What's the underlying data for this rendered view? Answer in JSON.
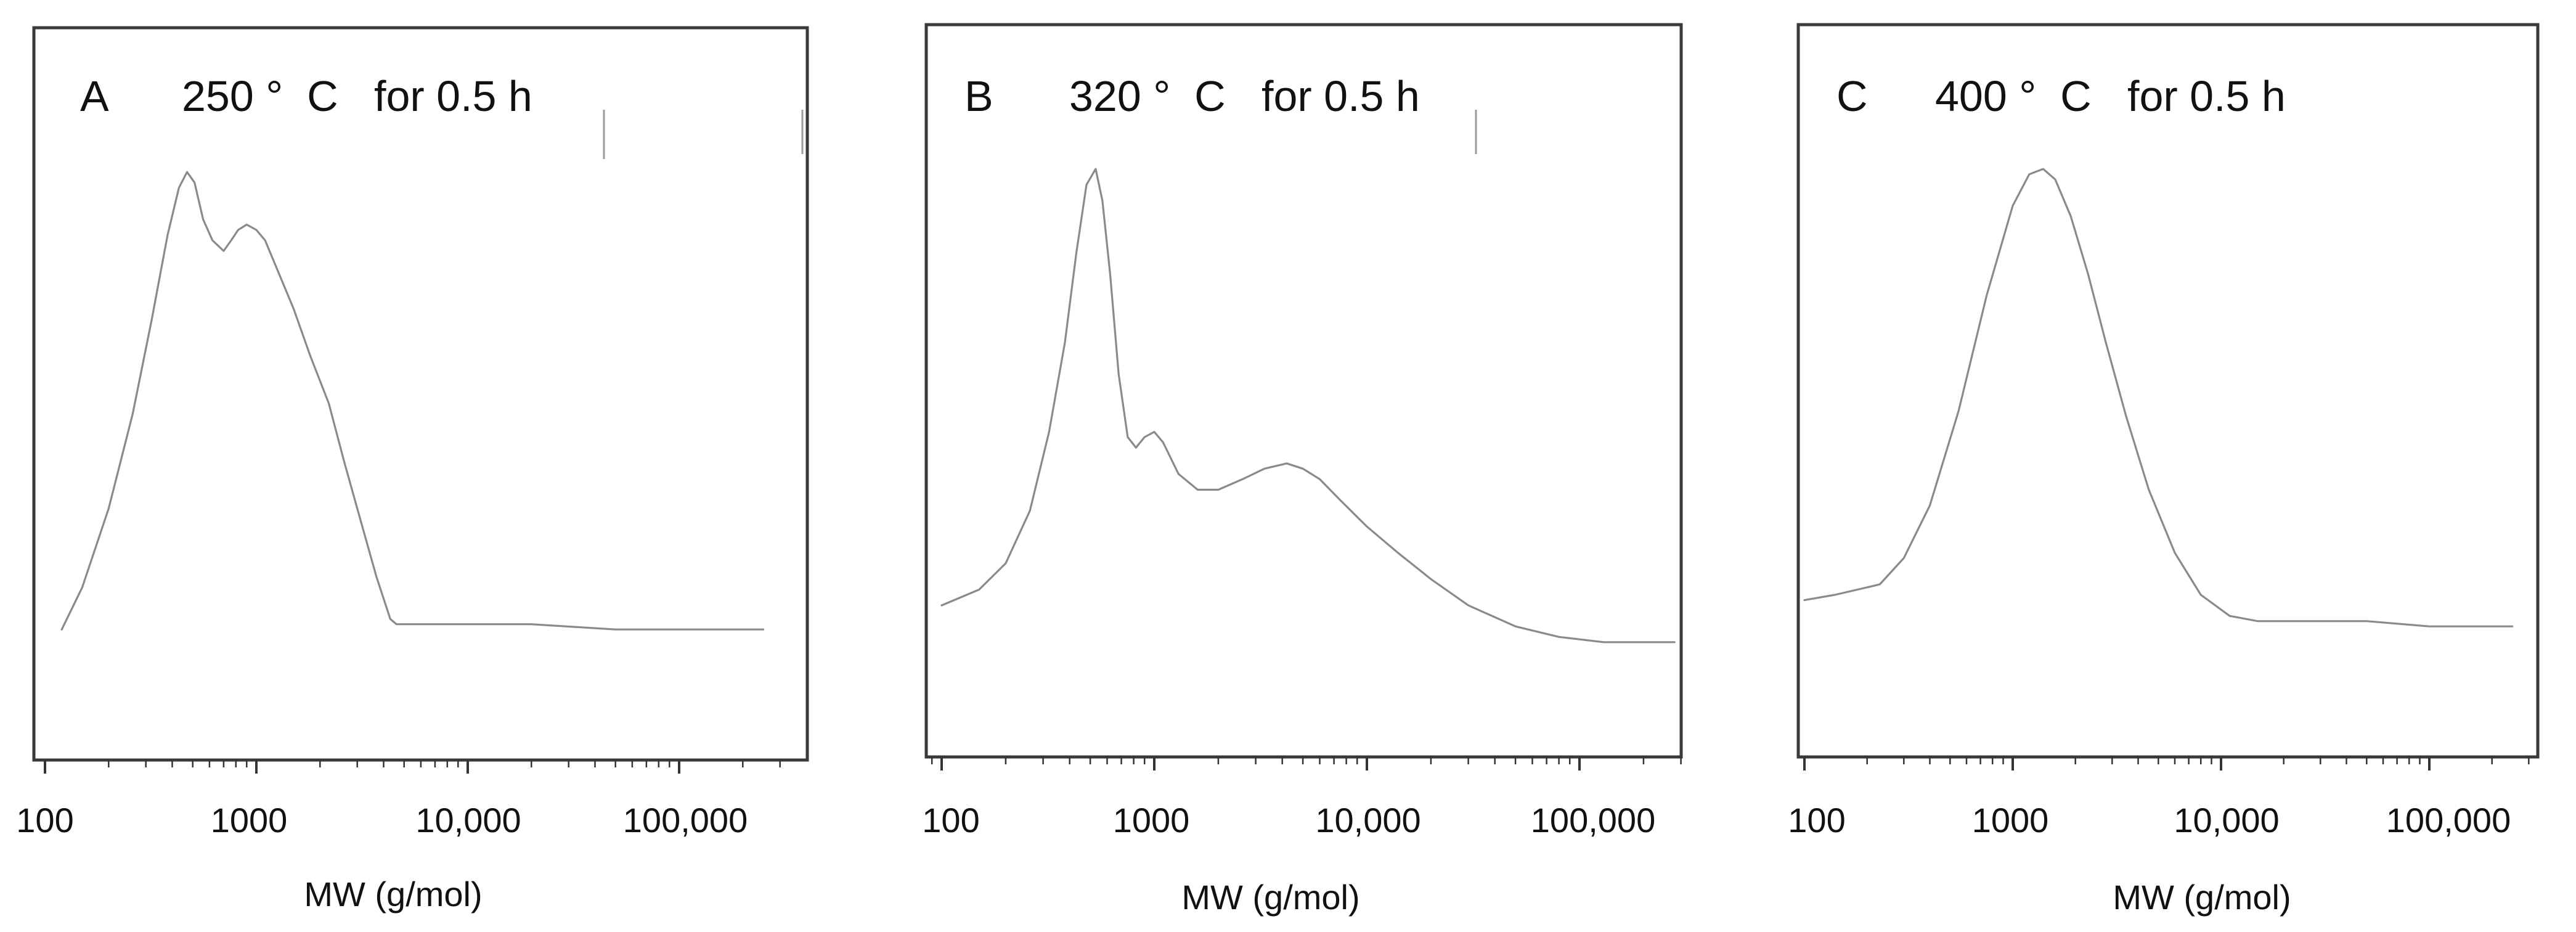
{
  "colors": {
    "frame": "#3a3a3a",
    "curve": "#8a8a8a",
    "text": "#111111",
    "background": "#ffffff"
  },
  "chart_data": [
    {
      "type": "line",
      "panel_letter": "A",
      "title": "250 °  C   for 0.5 h",
      "xlabel": "MW (g/mol)",
      "ylabel": "",
      "x_scale": "log",
      "xlim": [
        100,
        300000
      ],
      "ylim": [
        0,
        1
      ],
      "x_tick_values": [
        100,
        1000,
        10000,
        100000
      ],
      "x_tick_labels": [
        "100",
        "1000",
        "10,000",
        "100,000"
      ],
      "y_ticks": false,
      "grid": false,
      "legend": "none",
      "series": [
        {
          "x": [
            120,
            150,
            200,
            260,
            320,
            380,
            430,
            470,
            510,
            560,
            620,
            700,
            760,
            820,
            900,
            1000,
            1100,
            1300,
            1500,
            1800,
            2200,
            2600,
            3100,
            3700,
            4300,
            4600,
            5000,
            10000,
            20000,
            50000,
            100000,
            200000,
            250000
          ],
          "y": [
            0.09,
            0.17,
            0.32,
            0.5,
            0.68,
            0.84,
            0.93,
            0.96,
            0.94,
            0.87,
            0.83,
            0.81,
            0.83,
            0.85,
            0.86,
            0.85,
            0.83,
            0.76,
            0.7,
            0.61,
            0.52,
            0.41,
            0.3,
            0.19,
            0.11,
            0.1,
            0.1,
            0.1,
            0.1,
            0.09,
            0.09,
            0.09,
            0.09
          ]
        }
      ]
    },
    {
      "type": "line",
      "panel_letter": "B",
      "title": "320 °  C   for 0.5 h",
      "xlabel": "MW (g/mol)",
      "ylabel": "",
      "x_scale": "log",
      "xlim": [
        90,
        300000
      ],
      "ylim": [
        0,
        1
      ],
      "x_tick_values": [
        100,
        1000,
        10000,
        100000
      ],
      "x_tick_labels": [
        "100",
        "1000",
        "10,000",
        "100,000"
      ],
      "y_ticks": false,
      "grid": false,
      "legend": "none",
      "series": [
        {
          "x": [
            100,
            150,
            200,
            260,
            320,
            380,
            430,
            480,
            530,
            570,
            620,
            680,
            750,
            820,
            900,
            1000,
            1100,
            1300,
            1600,
            2000,
            2600,
            3300,
            4200,
            5000,
            6000,
            7500,
            10000,
            14000,
            20000,
            30000,
            50000,
            80000,
            130000,
            200000,
            280000
          ],
          "y": [
            0.13,
            0.16,
            0.21,
            0.31,
            0.46,
            0.63,
            0.8,
            0.93,
            0.96,
            0.9,
            0.76,
            0.57,
            0.45,
            0.43,
            0.45,
            0.46,
            0.44,
            0.38,
            0.35,
            0.35,
            0.37,
            0.39,
            0.4,
            0.39,
            0.37,
            0.33,
            0.28,
            0.23,
            0.18,
            0.13,
            0.09,
            0.07,
            0.06,
            0.06,
            0.06
          ]
        }
      ]
    },
    {
      "type": "line",
      "panel_letter": "C",
      "title": "400 °  C   for 0.5 h",
      "xlabel": "MW (g/mol)",
      "ylabel": "",
      "x_scale": "log",
      "xlim": [
        100,
        300000
      ],
      "ylim": [
        0,
        1
      ],
      "x_tick_values": [
        100,
        1000,
        10000,
        100000
      ],
      "x_tick_labels": [
        "100",
        "1000",
        "10,000",
        "100,000"
      ],
      "y_ticks": false,
      "grid": false,
      "legend": "none",
      "series": [
        {
          "x": [
            100,
            140,
            180,
            230,
            300,
            400,
            550,
            750,
            1000,
            1200,
            1400,
            1600,
            1900,
            2300,
            2800,
            3500,
            4500,
            6000,
            8000,
            11000,
            15000,
            20000,
            30000,
            50000,
            100000,
            150000,
            250000
          ],
          "y": [
            0.14,
            0.15,
            0.16,
            0.17,
            0.22,
            0.32,
            0.5,
            0.72,
            0.89,
            0.95,
            0.96,
            0.94,
            0.87,
            0.76,
            0.63,
            0.49,
            0.35,
            0.23,
            0.15,
            0.11,
            0.1,
            0.1,
            0.1,
            0.1,
            0.09,
            0.09,
            0.09
          ]
        }
      ]
    }
  ]
}
